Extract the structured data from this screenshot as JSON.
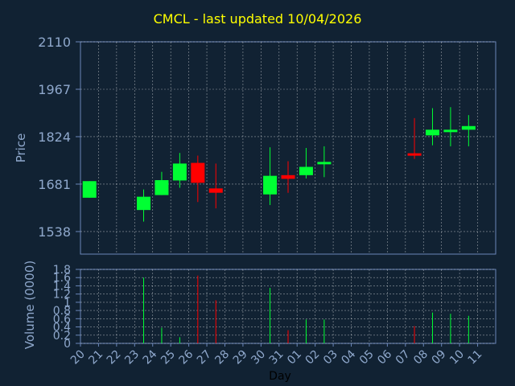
{
  "title": "CMCL - last updated 10/04/2026",
  "colors": {
    "background": "#112233",
    "axis": "#6a86b8",
    "text": "#8fa8cc",
    "title": "#ffff00",
    "up": "#00ff33",
    "down": "#ff0000",
    "grid": "#ffffff"
  },
  "chart_data": [
    {
      "type": "candlestick",
      "ylabel": "Price",
      "ylim": [
        1470,
        2110
      ],
      "yticks": [
        "2110",
        "1967",
        "1824",
        "1681",
        "1538"
      ],
      "ytick_values": [
        2110,
        1967,
        1824,
        1681,
        1538
      ],
      "grid": true,
      "candles": [
        {
          "day": "20",
          "open": 1640,
          "close": 1690,
          "high": 1690,
          "low": 1640,
          "volume": 0.0
        },
        {
          "day": "23",
          "open": 1603,
          "close": 1643,
          "high": 1665,
          "low": 1568,
          "volume": 1.6
        },
        {
          "day": "24",
          "open": 1648,
          "close": 1693,
          "high": 1718,
          "low": 1648,
          "volume": 0.38
        },
        {
          "day": "25",
          "open": 1692,
          "close": 1743,
          "high": 1775,
          "low": 1670,
          "volume": 0.15
        },
        {
          "day": "26",
          "open": 1745,
          "close": 1685,
          "high": 1767,
          "low": 1627,
          "volume": 1.65
        },
        {
          "day": "27",
          "open": 1668,
          "close": 1655,
          "high": 1743,
          "low": 1608,
          "volume": 1.05
        },
        {
          "day": "30",
          "open": 1650,
          "close": 1706,
          "high": 1792,
          "low": 1618,
          "volume": 1.35
        },
        {
          "day": "31",
          "open": 1708,
          "close": 1697,
          "high": 1750,
          "low": 1655,
          "volume": 0.32
        },
        {
          "day": "01",
          "open": 1708,
          "close": 1733,
          "high": 1790,
          "low": 1698,
          "volume": 0.58
        },
        {
          "day": "02",
          "open": 1745,
          "close": 1748,
          "high": 1795,
          "low": 1702,
          "volume": 0.58
        },
        {
          "day": "07",
          "open": 1774,
          "close": 1772,
          "high": 1880,
          "low": 1757,
          "volume": 0.42
        },
        {
          "day": "08",
          "open": 1828,
          "close": 1845,
          "high": 1910,
          "low": 1798,
          "volume": 0.75
        },
        {
          "day": "09",
          "open": 1841,
          "close": 1845,
          "high": 1913,
          "low": 1795,
          "volume": 0.72
        },
        {
          "day": "10",
          "open": 1845,
          "close": 1856,
          "high": 1889,
          "low": 1795,
          "volume": 0.67
        }
      ]
    },
    {
      "type": "bar",
      "ylabel": "Volume (0000)",
      "ylim": [
        0,
        1.8
      ],
      "yticks": [
        "1.8",
        "1.6",
        "1.4",
        "1.2",
        "1",
        "0.8",
        "0.6",
        "0.4",
        "0.2",
        "0"
      ],
      "ytick_values": [
        1.8,
        1.6,
        1.4,
        1.2,
        1,
        0.8,
        0.6,
        0.4,
        0.2,
        0
      ],
      "xlabel": "Day",
      "categories": [
        "20",
        "21",
        "22",
        "23",
        "24",
        "25",
        "26",
        "27",
        "28",
        "29",
        "30",
        "31",
        "01",
        "02",
        "03",
        "04",
        "05",
        "06",
        "07",
        "08",
        "09",
        "10",
        "11"
      ]
    }
  ]
}
